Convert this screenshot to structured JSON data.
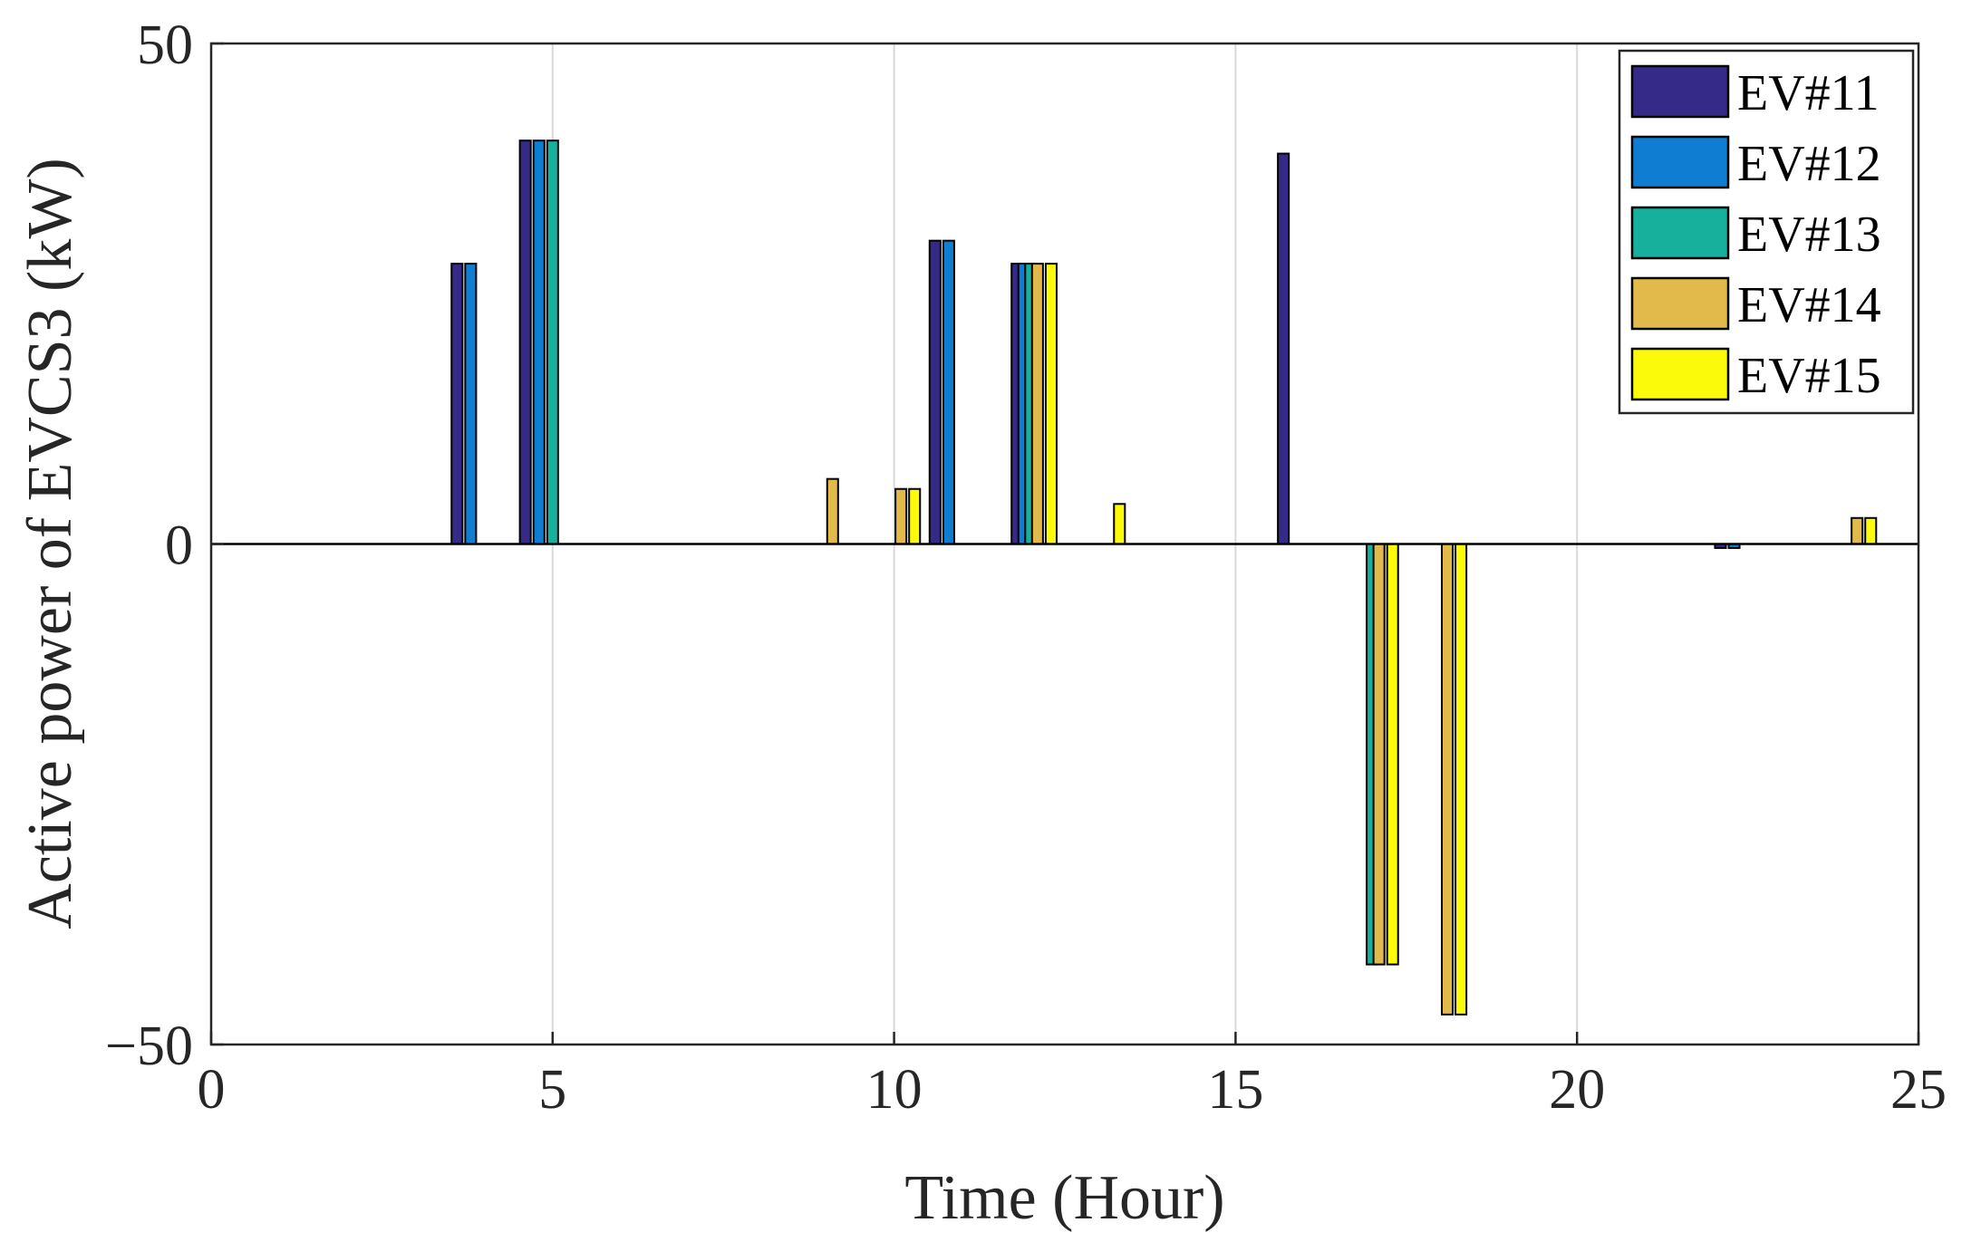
{
  "chart_data": {
    "type": "bar",
    "xlabel": "Time (Hour)",
    "ylabel": "Active power of EVCS3 (kW)",
    "xlim": [
      0,
      25
    ],
    "ylim": [
      -50,
      50
    ],
    "xticks": [
      0,
      5,
      10,
      15,
      20,
      25
    ],
    "yticks": [
      -50,
      0,
      50
    ],
    "xtick_labels": [
      "0",
      "5",
      "10",
      "15",
      "20",
      "25"
    ],
    "ytick_labels": [
      "−50",
      "0",
      "50"
    ],
    "grid": "vertical",
    "legend_position": "top-right",
    "bar_width_hours": 0.16,
    "series": [
      {
        "name": "EV#11",
        "color": "#352a87",
        "points": [
          {
            "x": 3.6,
            "y": 28
          },
          {
            "x": 4.6,
            "y": 40.3
          },
          {
            "x": 10.6,
            "y": 30.3
          },
          {
            "x": 11.8,
            "y": 28
          },
          {
            "x": 15.7,
            "y": 39
          },
          {
            "x": 22.1,
            "y": -0.4
          }
        ]
      },
      {
        "name": "EV#12",
        "color": "#0f7ed2",
        "points": [
          {
            "x": 3.8,
            "y": 28
          },
          {
            "x": 4.8,
            "y": 40.3
          },
          {
            "x": 10.8,
            "y": 30.3
          },
          {
            "x": 11.9,
            "y": 28
          },
          {
            "x": 22.3,
            "y": -0.4
          }
        ]
      },
      {
        "name": "EV#13",
        "color": "#17b09c",
        "points": [
          {
            "x": 5.0,
            "y": 40.3
          },
          {
            "x": 12.0,
            "y": 28
          },
          {
            "x": 17.0,
            "y": -42
          }
        ]
      },
      {
        "name": "EV#14",
        "color": "#e2b94b",
        "points": [
          {
            "x": 9.1,
            "y": 6.5
          },
          {
            "x": 10.1,
            "y": 5.5
          },
          {
            "x": 12.1,
            "y": 28
          },
          {
            "x": 17.1,
            "y": -42
          },
          {
            "x": 18.1,
            "y": -47
          },
          {
            "x": 24.1,
            "y": 2.6
          }
        ]
      },
      {
        "name": "EV#15",
        "color": "#fafa0a",
        "points": [
          {
            "x": 10.3,
            "y": 5.5
          },
          {
            "x": 12.3,
            "y": 28
          },
          {
            "x": 13.3,
            "y": 4
          },
          {
            "x": 17.3,
            "y": -42
          },
          {
            "x": 18.3,
            "y": -47
          },
          {
            "x": 24.3,
            "y": 2.6
          }
        ]
      }
    ]
  }
}
